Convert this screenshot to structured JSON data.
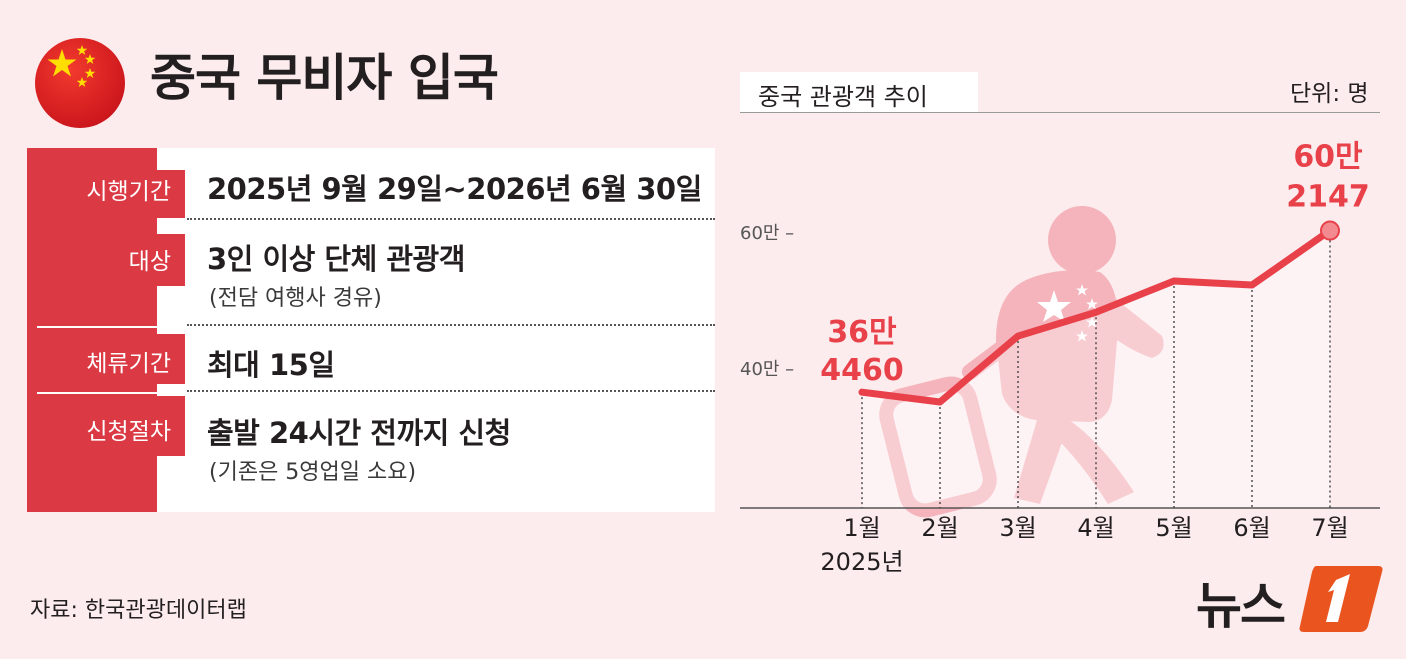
{
  "header": {
    "title": "중국 무비자 입국"
  },
  "info": {
    "rows": [
      {
        "label": "시행기간",
        "value": "2025년 9월 29일~2026년 6월 30일",
        "sub": ""
      },
      {
        "label": "대상",
        "value": "3인 이상 단체 관광객",
        "sub": "(전담 여행사 경유)"
      },
      {
        "label": "체류기간",
        "value": "최대 15일",
        "sub": ""
      },
      {
        "label": "신청절차",
        "value": "출발 24시간 전까지 신청",
        "sub": "(기존은 5영업일 소요)"
      }
    ]
  },
  "source": "자료: 한국관광데이터랩",
  "logo": {
    "text": "뉴스",
    "mark": "1"
  },
  "colors": {
    "accent": "#db3a44",
    "line": "#e8414a",
    "background": "#fcecee",
    "silhouette": "#f5b3bb"
  },
  "chart_data": {
    "type": "line",
    "title": "중국 관광객 추이",
    "unit": "단위: 명",
    "categories": [
      "1월",
      "2월",
      "3월",
      "4월",
      "5월",
      "6월",
      "7월"
    ],
    "year_label": "2025년",
    "series": [
      {
        "values": [
          364460,
          350000,
          447000,
          482000,
          528000,
          522000,
          602147
        ]
      }
    ],
    "yticks": [
      {
        "value": 400000,
        "label": "40만"
      },
      {
        "value": 600000,
        "label": "60만"
      }
    ],
    "annotations": [
      {
        "index": 0,
        "line1": "36만",
        "line2": "4460"
      },
      {
        "index": 6,
        "line1": "60만",
        "line2": "2147"
      }
    ],
    "ylim": [
      200000,
      680000
    ],
    "grid": false,
    "legend": "none",
    "icons": [
      "tourist-with-suitcase-silhouette",
      "china-flag-icon"
    ]
  }
}
